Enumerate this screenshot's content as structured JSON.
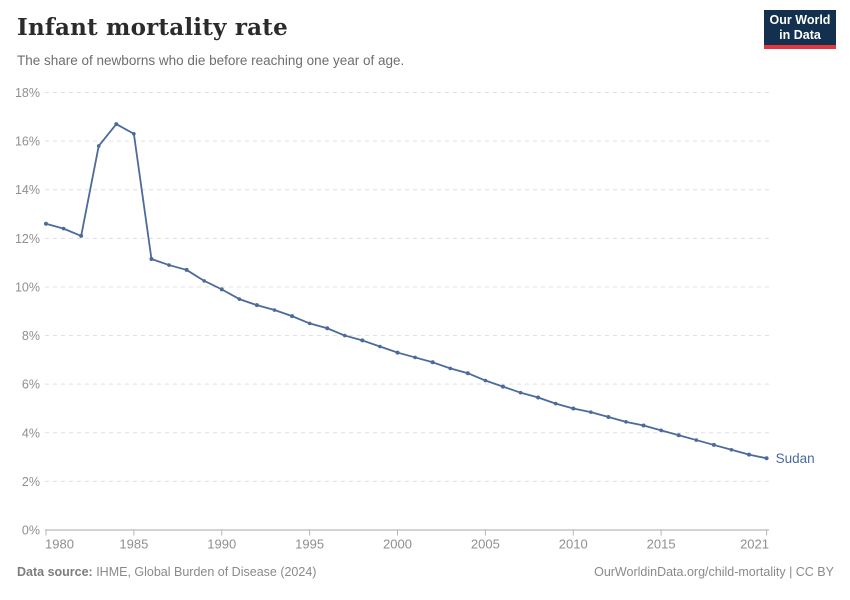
{
  "header": {
    "title": "Infant mortality rate",
    "subtitle": "The share of newborns who die before reaching one year of age.",
    "logo": {
      "line1": "Our World",
      "line2": "in Data",
      "bg_color": "#14304F",
      "accent_color": "#E5353F"
    }
  },
  "chart_data": {
    "type": "line",
    "title": "Infant mortality rate",
    "xlabel": "",
    "ylabel": "",
    "xlim": [
      1980,
      2021
    ],
    "ylim": [
      0,
      18
    ],
    "grid": "horizontal-dashed",
    "legend_position": "end-of-line-label",
    "x_ticks": [
      1980,
      1985,
      1990,
      1995,
      2000,
      2005,
      2010,
      2015,
      2021
    ],
    "y_ticks": [
      0,
      2,
      4,
      6,
      8,
      10,
      12,
      14,
      16,
      18
    ],
    "y_tick_suffix": "%",
    "series": [
      {
        "name": "Sudan",
        "color": "#4C6A9C",
        "x": [
          1980,
          1981,
          1982,
          1983,
          1984,
          1985,
          1986,
          1987,
          1988,
          1989,
          1990,
          1991,
          1992,
          1993,
          1994,
          1995,
          1996,
          1997,
          1998,
          1999,
          2000,
          2001,
          2002,
          2003,
          2004,
          2005,
          2006,
          2007,
          2008,
          2009,
          2010,
          2011,
          2012,
          2013,
          2014,
          2015,
          2016,
          2017,
          2018,
          2019,
          2020,
          2021
        ],
        "values": [
          12.6,
          12.4,
          12.1,
          15.8,
          16.7,
          16.3,
          11.15,
          10.9,
          10.7,
          10.25,
          9.9,
          9.5,
          9.25,
          9.05,
          8.8,
          8.5,
          8.3,
          8.0,
          7.8,
          7.55,
          7.3,
          7.1,
          6.9,
          6.65,
          6.45,
          6.15,
          5.9,
          5.65,
          5.45,
          5.2,
          5.0,
          4.85,
          4.65,
          4.45,
          4.3,
          4.1,
          3.9,
          3.7,
          3.5,
          3.3,
          3.1,
          2.95
        ]
      }
    ],
    "colors": {
      "gridline": "#e0e0e0",
      "axis_line": "#a8a8a8",
      "tick": "#b5b5b5",
      "tick_label": "#8f8f8f"
    }
  },
  "footer": {
    "source_label": "Data source:",
    "source_text": " IHME, Global Burden of Disease (2024)",
    "credit": "OurWorldinData.org/child-mortality | CC BY"
  }
}
